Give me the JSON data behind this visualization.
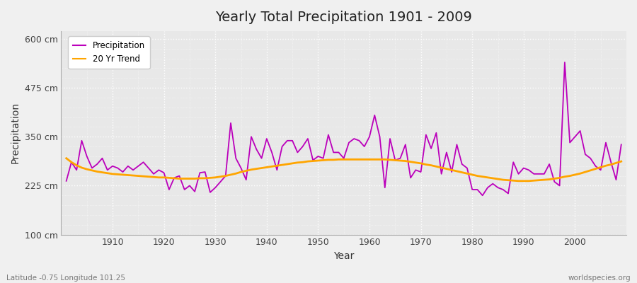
{
  "title": "Yearly Total Precipitation 1901 - 2009",
  "xlabel": "Year",
  "ylabel": "Precipitation",
  "subtitle_lat_lon": "Latitude -0.75 Longitude 101.25",
  "watermark": "worldspecies.org",
  "bg_color": "#f0f0f0",
  "plot_bg_color": "#e8e8e8",
  "line_color": "#bb00bb",
  "trend_color": "#FFA500",
  "ylim": [
    100,
    620
  ],
  "yticks": [
    100,
    225,
    350,
    475,
    600
  ],
  "ytick_labels": [
    "100 cm",
    "225 cm",
    "350 cm",
    "475 cm",
    "600 cm"
  ],
  "xlim": [
    1900,
    2010
  ],
  "xticks": [
    1910,
    1920,
    1930,
    1940,
    1950,
    1960,
    1970,
    1980,
    1990,
    2000
  ],
  "years": [
    1901,
    1902,
    1903,
    1904,
    1905,
    1906,
    1907,
    1908,
    1909,
    1910,
    1911,
    1912,
    1913,
    1914,
    1915,
    1916,
    1917,
    1918,
    1919,
    1920,
    1921,
    1922,
    1923,
    1924,
    1925,
    1926,
    1927,
    1928,
    1929,
    1930,
    1931,
    1932,
    1933,
    1934,
    1935,
    1936,
    1937,
    1938,
    1939,
    1940,
    1941,
    1942,
    1943,
    1944,
    1945,
    1946,
    1947,
    1948,
    1949,
    1950,
    1951,
    1952,
    1953,
    1954,
    1955,
    1956,
    1957,
    1958,
    1959,
    1960,
    1961,
    1962,
    1963,
    1964,
    1965,
    1966,
    1967,
    1968,
    1969,
    1970,
    1971,
    1972,
    1973,
    1974,
    1975,
    1976,
    1977,
    1978,
    1979,
    1980,
    1981,
    1982,
    1983,
    1984,
    1985,
    1986,
    1987,
    1988,
    1989,
    1990,
    1991,
    1992,
    1993,
    1994,
    1995,
    1996,
    1997,
    1998,
    1999,
    2000,
    2001,
    2002,
    2003,
    2004,
    2005,
    2006,
    2007,
    2008,
    2009
  ],
  "precipitation": [
    237,
    285,
    265,
    340,
    300,
    270,
    280,
    295,
    265,
    275,
    270,
    260,
    275,
    265,
    275,
    285,
    270,
    255,
    265,
    258,
    215,
    245,
    250,
    215,
    225,
    210,
    258,
    260,
    208,
    220,
    235,
    250,
    385,
    295,
    270,
    240,
    350,
    318,
    295,
    345,
    310,
    265,
    325,
    340,
    340,
    310,
    325,
    345,
    290,
    300,
    295,
    355,
    310,
    310,
    295,
    335,
    345,
    340,
    325,
    350,
    405,
    350,
    220,
    345,
    290,
    295,
    330,
    245,
    265,
    260,
    355,
    320,
    360,
    255,
    310,
    260,
    330,
    280,
    270,
    215,
    215,
    200,
    220,
    230,
    220,
    215,
    205,
    285,
    255,
    270,
    265,
    255,
    255,
    255,
    280,
    235,
    225,
    540,
    335,
    350,
    365,
    305,
    295,
    275,
    265,
    335,
    285,
    240,
    330
  ],
  "trend": [
    295,
    285,
    277,
    271,
    267,
    264,
    261,
    259,
    257,
    255,
    254,
    253,
    252,
    251,
    250,
    249,
    248,
    247,
    246,
    246,
    245,
    244,
    243,
    243,
    243,
    243,
    244,
    244,
    245,
    246,
    248,
    250,
    253,
    256,
    260,
    263,
    266,
    268,
    270,
    272,
    274,
    276,
    278,
    280,
    282,
    284,
    285,
    287,
    288,
    289,
    290,
    291,
    291,
    292,
    292,
    292,
    292,
    292,
    292,
    292,
    292,
    292,
    292,
    291,
    290,
    289,
    288,
    286,
    284,
    282,
    279,
    277,
    274,
    271,
    268,
    265,
    262,
    259,
    256,
    253,
    250,
    248,
    246,
    244,
    242,
    240,
    239,
    238,
    237,
    237,
    237,
    238,
    239,
    240,
    241,
    243,
    245,
    248,
    250,
    253,
    256,
    260,
    264,
    268,
    272,
    276,
    279,
    283,
    287
  ]
}
